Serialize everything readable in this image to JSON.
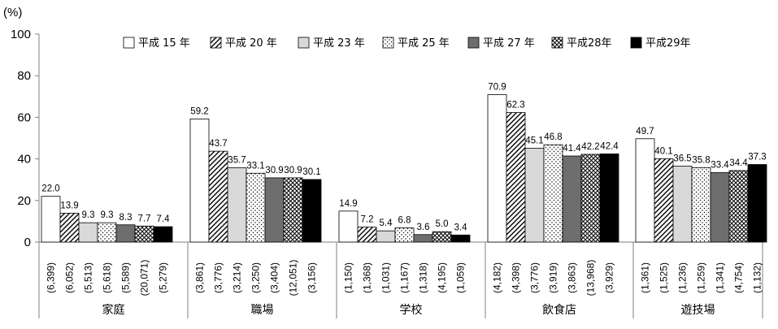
{
  "chart_data": {
    "type": "bar",
    "title": "",
    "xlabel": "",
    "ylabel": "(%)",
    "ylim": [
      0,
      100
    ],
    "yticks": [
      "0",
      "20",
      "40",
      "60",
      "80",
      "100"
    ],
    "legend_position": "top-right",
    "grid": false,
    "categories": [
      "家庭",
      "職場",
      "学校",
      "飲食店",
      "遊技場"
    ],
    "series": [
      {
        "name": "平成 15 年",
        "pattern": "white",
        "values": [
          22.0,
          59.2,
          14.9,
          70.9,
          49.7
        ],
        "labels": [
          "22.0",
          "59.2",
          "14.9",
          "70.9",
          "49.7"
        ],
        "n": [
          "(6,399)",
          "(3,861)",
          "(1,150)",
          "(4,182)",
          "(1,361)"
        ]
      },
      {
        "name": "平成 20 年",
        "pattern": "diagonal",
        "values": [
          13.9,
          43.7,
          7.2,
          62.3,
          40.1
        ],
        "labels": [
          "13.9",
          "43.7",
          "7.2",
          "62.3",
          "40.1"
        ],
        "n": [
          "(6,052)",
          "(3,776)",
          "(1,368)",
          "(4,398)",
          "(1,525)"
        ]
      },
      {
        "name": "平成 23 年",
        "pattern": "lightgray",
        "values": [
          9.3,
          35.7,
          5.4,
          45.1,
          36.5
        ],
        "labels": [
          "9.3",
          "35.7",
          "5.4",
          "45.1",
          "36.5"
        ],
        "n": [
          "(5,513)",
          "(3,214)",
          "(1,031)",
          "(3,776)",
          "(1,236)"
        ]
      },
      {
        "name": "平成 25 年",
        "pattern": "dots",
        "values": [
          9.3,
          33.1,
          6.8,
          46.8,
          35.8
        ],
        "labels": [
          "9.3",
          "33.1",
          "6.8",
          "46.8",
          "35.8"
        ],
        "n": [
          "(5,618)",
          "(3,250)",
          "(1,167)",
          "(3,919)",
          "(1,259)"
        ]
      },
      {
        "name": "平成 27 年",
        "pattern": "darkgray",
        "values": [
          8.3,
          30.9,
          3.6,
          41.4,
          33.4
        ],
        "labels": [
          "8.3",
          "30.9",
          "3.6",
          "41.4",
          "33.4"
        ],
        "n": [
          "(5,589)",
          "(3,404)",
          "(1,318)",
          "(3,863)",
          "(1,341)"
        ]
      },
      {
        "name": "平成28年",
        "pattern": "crosshatch",
        "values": [
          7.7,
          30.9,
          5.0,
          42.2,
          34.4
        ],
        "labels": [
          "7.7",
          "30.9",
          "5.0",
          "42.2",
          "34.4"
        ],
        "n": [
          "(20,071)",
          "(12,051)",
          "(4,195)",
          "(13,968)",
          "(4,754)"
        ]
      },
      {
        "name": "平成29年",
        "pattern": "black",
        "values": [
          7.4,
          30.1,
          3.4,
          42.4,
          37.3
        ],
        "labels": [
          "7.4",
          "30.1",
          "3.4",
          "42.4",
          "37.3"
        ],
        "n": [
          "(5,279)",
          "(3,156)",
          "(1,059)",
          "(3,929)",
          "(1,132)"
        ]
      }
    ]
  },
  "colors": {
    "white": "#ffffff",
    "lightgray": "#d9d9d9",
    "darkgray": "#6e6e6e",
    "black": "#000000",
    "stroke": "#000000",
    "axis": "#808080"
  }
}
